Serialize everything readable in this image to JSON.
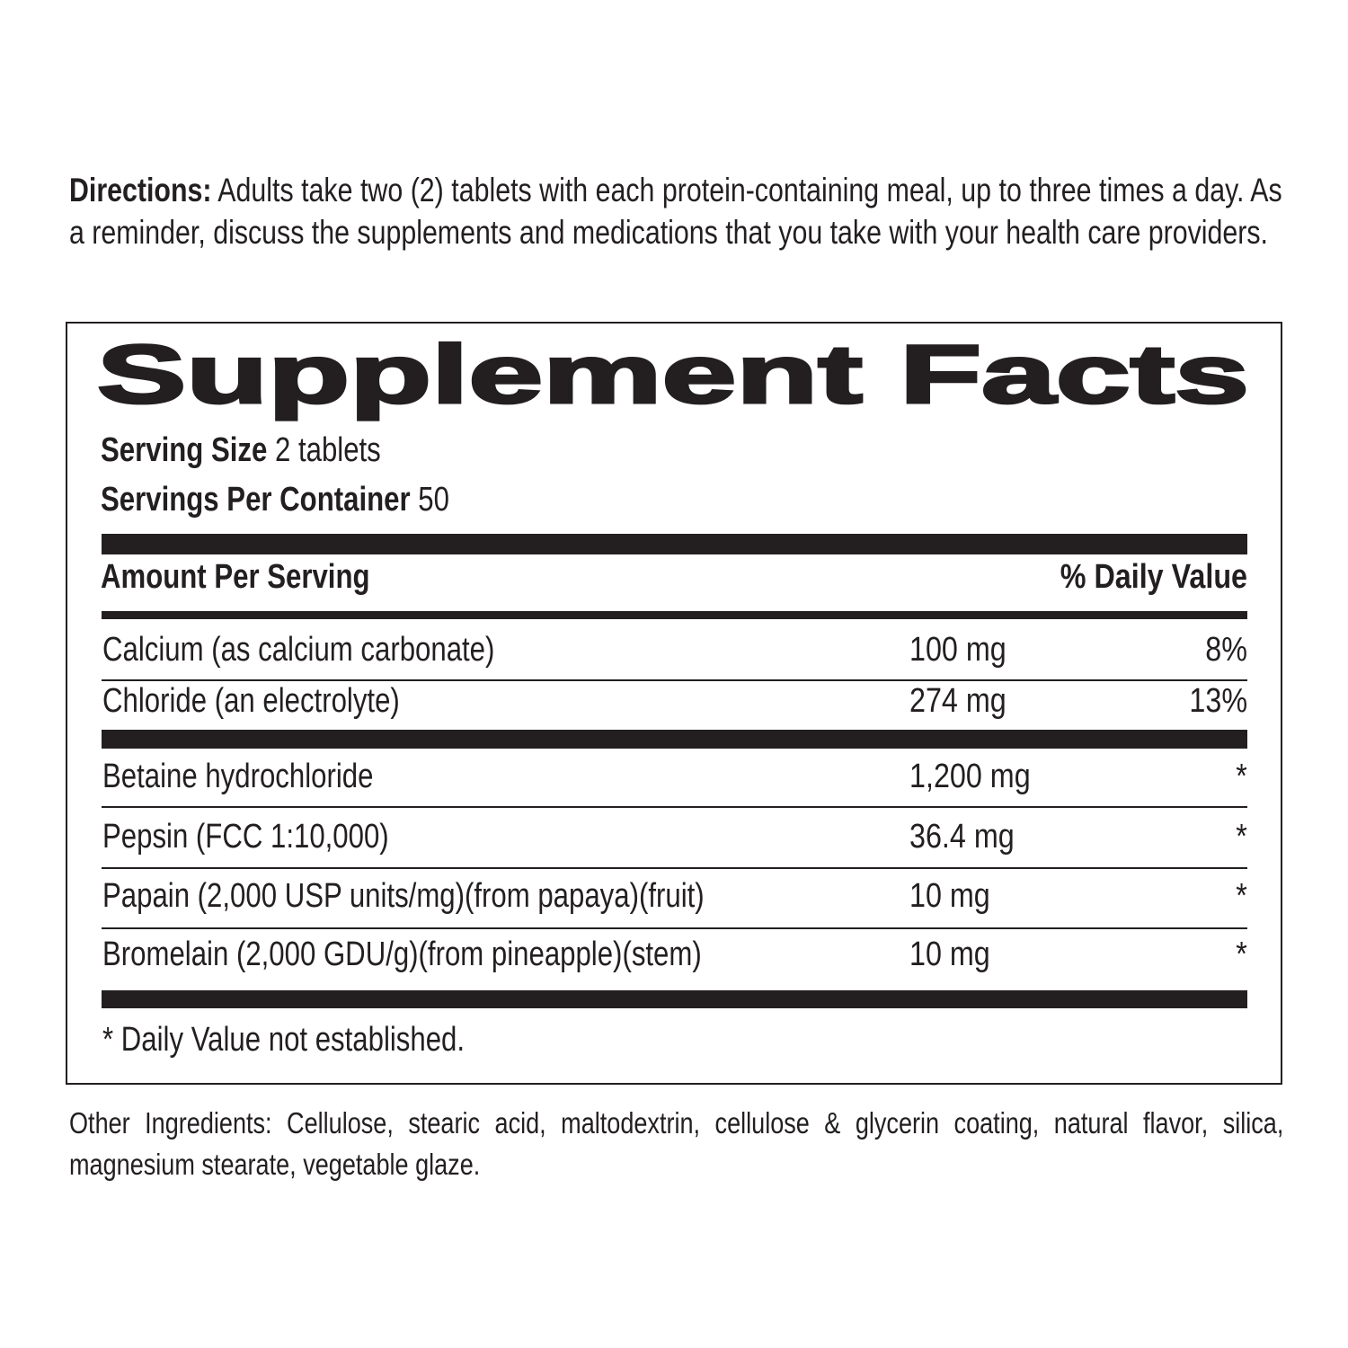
{
  "directions": {
    "label": "Directions:",
    "text": " Adults take two (2) tablets with each protein-containing meal, up to three times a day. As a reminder, discuss the supplements and medications that you take with your health care providers."
  },
  "facts": {
    "title": "Supplement Facts",
    "serving_size_label": "Serving Size",
    "serving_size_value": " 2 tablets",
    "servings_per_container_label": "Servings Per Container",
    "servings_per_container_value": " 50",
    "header_amount": "Amount Per Serving",
    "header_dv": "% Daily Value",
    "rows": [
      {
        "name": "Calcium (as calcium carbonate)",
        "amount": "100 mg",
        "dv": "8%"
      },
      {
        "name": "Chloride (an electrolyte)",
        "amount": "274 mg",
        "dv": "13%"
      },
      {
        "name": "Betaine hydrochloride",
        "amount": "1,200 mg",
        "dv": "*"
      },
      {
        "name": "Pepsin (FCC 1:10,000)",
        "amount": "36.4 mg",
        "dv": "*"
      },
      {
        "name": "Papain (2,000 USP units/mg)(from papaya)(fruit)",
        "amount": "10 mg",
        "dv": "*"
      },
      {
        "name": "Bromelain (2,000 GDU/g)(from pineapple)(stem)",
        "amount": "10 mg",
        "dv": "*"
      }
    ],
    "footnote": "* Daily Value not established."
  },
  "other_ingredients": "Other Ingredients: Cellulose, stearic acid,  maltodextrin, cellulose & glycerin coating, natural flavor, silica, magnesium stearate, vegetable glaze."
}
